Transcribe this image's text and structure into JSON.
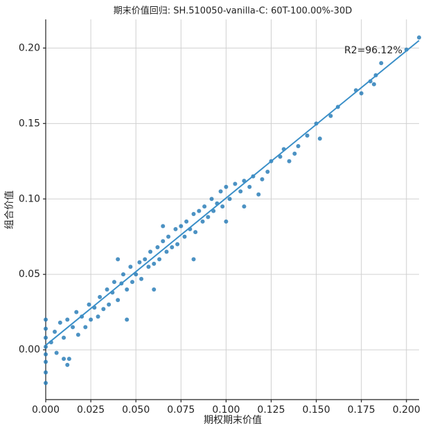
{
  "chart_data": {
    "type": "scatter",
    "title": "期末价值回归: SH.510050-vanilla-C: 60T-100.00%-30D",
    "x_label": "期权期末价值",
    "y_label": "组合价值",
    "annotation": "R2=96.12%",
    "color": "#1f77b4",
    "line_color": "#3a8fc8",
    "grid": true,
    "xlim": [
      0,
      0.207
    ],
    "ylim": [
      -0.033,
      0.219
    ],
    "xticks": [
      {
        "value": 0,
        "label": "0.000"
      },
      {
        "value": 0.025,
        "label": "0.025"
      },
      {
        "value": 0.05,
        "label": "0.050"
      },
      {
        "value": 0.075,
        "label": "0.075"
      },
      {
        "value": 0.1,
        "label": "0.100"
      },
      {
        "value": 0.125,
        "label": "0.125"
      },
      {
        "value": 0.15,
        "label": "0.150"
      },
      {
        "value": 0.175,
        "label": "0.175"
      },
      {
        "value": 0.2,
        "label": "0.200"
      }
    ],
    "yticks": [
      {
        "value": 0,
        "label": "0.00"
      },
      {
        "value": 0.05,
        "label": "0.05"
      },
      {
        "value": 0.1,
        "label": "0.10"
      },
      {
        "value": 0.15,
        "label": "0.15"
      },
      {
        "value": 0.2,
        "label": "0.20"
      }
    ],
    "fit_line": {
      "x": [
        0,
        0.207
      ],
      "y": [
        0.003,
        0.205
      ]
    },
    "x": [
      0,
      0,
      0,
      0,
      0,
      0,
      0,
      0,
      0.003,
      0.005,
      0.006,
      0.008,
      0.01,
      0.012,
      0.013,
      0.015,
      0.017,
      0.018,
      0.02,
      0.022,
      0.024,
      0.025,
      0.027,
      0.029,
      0.03,
      0.032,
      0.034,
      0.035,
      0.037,
      0.038,
      0.04,
      0.042,
      0.043,
      0.045,
      0.047,
      0.048,
      0.05,
      0.052,
      0.053,
      0.055,
      0.057,
      0.058,
      0.06,
      0.062,
      0.063,
      0.065,
      0.067,
      0.068,
      0.07,
      0.072,
      0.073,
      0.075,
      0.077,
      0.078,
      0.08,
      0.082,
      0.083,
      0.085,
      0.087,
      0.088,
      0.09,
      0.092,
      0.093,
      0.095,
      0.097,
      0.098,
      0.1,
      0.102,
      0.105,
      0.108,
      0.11,
      0.113,
      0.115,
      0.118,
      0.12,
      0.123,
      0.125,
      0.13,
      0.132,
      0.135,
      0.138,
      0.14,
      0.145,
      0.15,
      0.152,
      0.158,
      0.162,
      0.172,
      0.175,
      0.18,
      0.182,
      0.183,
      0.186,
      0.2,
      0.207,
      0.012,
      0.01,
      0.045,
      0.04,
      0.065,
      0.06,
      0.082,
      0.1,
      0.11
    ],
    "y": [
      -0.022,
      -0.015,
      -0.008,
      -0.003,
      0.002,
      0.008,
      0.014,
      0.02,
      0.005,
      0.012,
      -0.002,
      0.018,
      0.008,
      0.02,
      -0.006,
      0.015,
      0.025,
      0.01,
      0.022,
      0.015,
      0.03,
      0.02,
      0.028,
      0.022,
      0.035,
      0.027,
      0.04,
      0.03,
      0.038,
      0.045,
      0.033,
      0.044,
      0.05,
      0.04,
      0.055,
      0.045,
      0.05,
      0.058,
      0.047,
      0.06,
      0.055,
      0.065,
      0.057,
      0.068,
      0.06,
      0.072,
      0.065,
      0.075,
      0.068,
      0.08,
      0.07,
      0.082,
      0.075,
      0.085,
      0.08,
      0.09,
      0.078,
      0.092,
      0.085,
      0.095,
      0.088,
      0.1,
      0.092,
      0.097,
      0.105,
      0.095,
      0.108,
      0.1,
      0.11,
      0.105,
      0.112,
      0.108,
      0.115,
      0.103,
      0.113,
      0.118,
      0.125,
      0.128,
      0.133,
      0.125,
      0.13,
      0.135,
      0.142,
      0.15,
      0.14,
      0.155,
      0.161,
      0.172,
      0.17,
      0.178,
      0.176,
      0.182,
      0.19,
      0.199,
      0.207,
      -0.01,
      -0.006,
      0.02,
      0.06,
      0.082,
      0.04,
      0.06,
      0.085,
      0.095
    ]
  }
}
